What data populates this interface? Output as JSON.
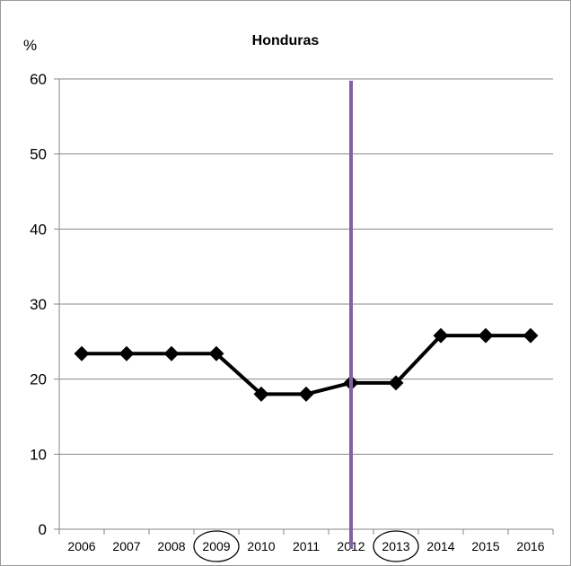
{
  "chart_data": {
    "type": "line",
    "title": "Honduras",
    "ylabel": "%",
    "xlabel": "",
    "ylim": [
      0,
      60
    ],
    "yticks": [
      0,
      10,
      20,
      30,
      40,
      50,
      60
    ],
    "grid": true,
    "categories": [
      "2006",
      "2007",
      "2008",
      "2009",
      "2010",
      "2011",
      "2012",
      "2013",
      "2014",
      "2015",
      "2016"
    ],
    "series": [
      {
        "values": [
          23.4,
          23.4,
          23.4,
          23.4,
          18.0,
          18.0,
          19.5,
          19.5,
          25.8,
          25.8,
          25.8
        ],
        "color": "#000000",
        "marker": "diamond"
      }
    ],
    "vertical_line": {
      "x": "2012",
      "color": "#8064a2"
    },
    "circled_categories": [
      "2009",
      "2013"
    ]
  }
}
